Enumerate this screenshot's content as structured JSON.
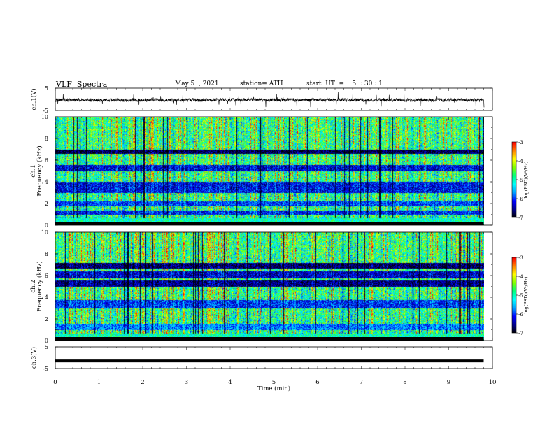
{
  "header": {
    "title": "VLF  Spectra",
    "date": "May 5  , 2021",
    "station": "station= ATH",
    "start_ut": "start  UT  =    5  : 30 : 1"
  },
  "chart_data": [
    {
      "type": "line",
      "panel": "ch1-waveform",
      "ylabel": "ch.1(V)",
      "ylim": [
        -5,
        5
      ],
      "ytick_labels": [
        "5",
        "-5"
      ],
      "x_range_min": [
        0,
        9.8
      ],
      "series": [
        {
          "color": "#000000",
          "baseline_v": -0.3,
          "spread_v": 1.5
        }
      ]
    },
    {
      "type": "heatmap",
      "panel": "ch1-spectrogram",
      "ylabel_lines": [
        "ch.1",
        "Frequency  (kHz)"
      ],
      "ylim": [
        0,
        10
      ],
      "ytick_labels": [
        "0",
        "2",
        "4",
        "6",
        "8",
        "10"
      ],
      "colorbar": {
        "label": "log(PSD)(V²/Hz)",
        "range": [
          -7,
          -3
        ],
        "tick_labels": [
          "-3",
          "-4",
          "-5",
          "-6",
          "-7"
        ]
      }
    },
    {
      "type": "heatmap",
      "panel": "ch2-spectrogram",
      "ylabel_lines": [
        "ch.2",
        "Frequency  (kHz)"
      ],
      "ylim": [
        0,
        10
      ],
      "ytick_labels": [
        "0",
        "2",
        "4",
        "6",
        "8",
        "10"
      ],
      "colorbar": {
        "label": "log(PSD)(V²/Hz)",
        "range": [
          -7,
          -3
        ],
        "tick_labels": [
          "-3",
          "-4",
          "-5",
          "-6",
          "-7"
        ]
      }
    },
    {
      "type": "line",
      "panel": "ch3-waveform",
      "ylabel": "ch.3(V)",
      "ylim": [
        -5,
        5
      ],
      "ytick_labels": [
        "5",
        "-5"
      ],
      "series": [
        {
          "color": "#000000",
          "level_v": -1.5
        }
      ]
    }
  ],
  "xaxis": {
    "xlabel": "Time  (min)",
    "xlim": [
      0,
      10
    ],
    "tick_labels": [
      "0",
      "1",
      "2",
      "3",
      "4",
      "5",
      "6",
      "7",
      "8",
      "9",
      "10"
    ]
  },
  "colors": {
    "colormap": [
      "#000000",
      "#00008b",
      "#0000ff",
      "#00a0ff",
      "#00ffff",
      "#00ff80",
      "#80ff00",
      "#ffff00",
      "#ff8000",
      "#ff0000",
      "#ffffff"
    ]
  }
}
